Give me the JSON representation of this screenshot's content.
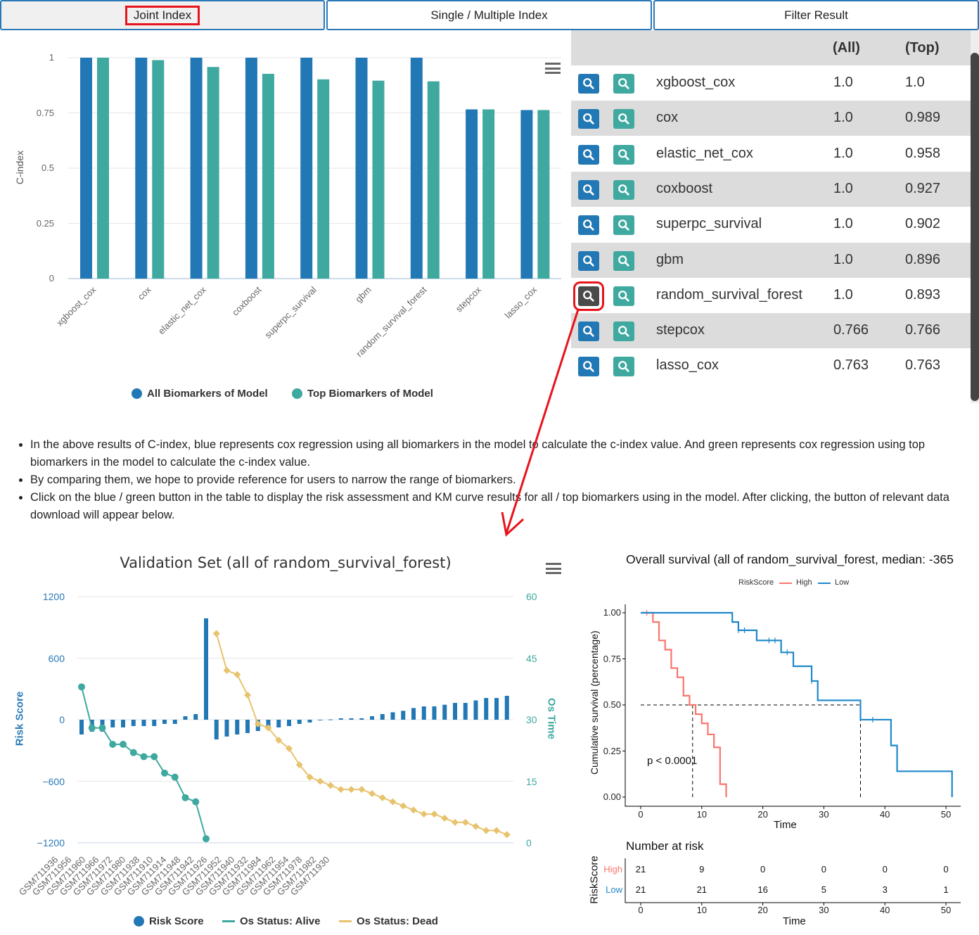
{
  "tabs": [
    {
      "label": "Joint Index",
      "active": true
    },
    {
      "label": "Single / Multiple Index"
    },
    {
      "label": "Filter Result"
    }
  ],
  "table": {
    "headers": {
      "all": "(All)",
      "top": "(Top)"
    },
    "rows": [
      {
        "model": "xgboost_cox",
        "all": "1.0",
        "top": "1.0"
      },
      {
        "model": "cox",
        "all": "1.0",
        "top": "0.989"
      },
      {
        "model": "elastic_net_cox",
        "all": "1.0",
        "top": "0.958"
      },
      {
        "model": "coxboost",
        "all": "1.0",
        "top": "0.927"
      },
      {
        "model": "superpc_survival",
        "all": "1.0",
        "top": "0.902"
      },
      {
        "model": "gbm",
        "all": "1.0",
        "top": "0.896"
      },
      {
        "model": "random_survival_forest",
        "all": "1.0",
        "top": "0.893",
        "selected": true
      },
      {
        "model": "stepcox",
        "all": "0.766",
        "top": "0.766"
      },
      {
        "model": "lasso_cox",
        "all": "0.763",
        "top": "0.763"
      }
    ],
    "all_button_color": "#2278b5",
    "top_button_color": "#3fa9a0",
    "selected_button_color": "#4a4a4a"
  },
  "notes": [
    "In the above results of C-index, blue represents cox regression using all biomarkers in the model to calculate the c-index value. And green represents cox regression using top biomarkers in the model to calculate the c-index value.",
    "By comparing them, we hope to provide reference for users to narrow the range of biomarkers.",
    "Click on the blue / green button in the table to display the risk assessment and KM curve results for all / top biomarkers using in the model. After clicking, the button of relevant data download will appear below."
  ],
  "chart_data": [
    {
      "type": "bar",
      "ylabel": "C-index",
      "ylim": [
        0,
        1
      ],
      "yticks": [
        "0",
        "0.25",
        "0.5",
        "0.75",
        "1"
      ],
      "categories": [
        "xgboost_cox",
        "cox",
        "elastic_net_cox",
        "coxboost",
        "superpc_survival",
        "gbm",
        "random_survival_forest",
        "stepcox",
        "lasso_cox"
      ],
      "series": [
        {
          "name": "All Biomarkers of Model",
          "color": "#2278b5",
          "values": [
            1.0,
            1.0,
            1.0,
            1.0,
            1.0,
            1.0,
            1.0,
            0.766,
            0.763
          ]
        },
        {
          "name": "Top Biomarkers of Model",
          "color": "#3fa9a0",
          "values": [
            1.0,
            0.989,
            0.958,
            0.927,
            0.902,
            0.896,
            0.893,
            0.766,
            0.763
          ]
        }
      ],
      "legend": "bottom",
      "grid": true
    },
    {
      "type": "bar+line",
      "title": "Validation Set (all of random_survival_forest)",
      "ylabel_left": "Risk Score",
      "ylabel_right": "Os Time",
      "ylim_left": [
        -1200,
        1200
      ],
      "yticks_left": [
        "1200",
        "600",
        "0",
        "−600",
        "−1200"
      ],
      "ylim_right": [
        0,
        60
      ],
      "yticks_right": [
        "60",
        "45",
        "30",
        "15",
        "0"
      ],
      "xtick_labels": [
        "GSM711936",
        "GSM711956",
        "GSM711960",
        "GSM711966",
        "GSM711972",
        "GSM711980",
        "GSM711938",
        "GSM711910",
        "GSM711914",
        "GSM711948",
        "GSM711942",
        "GSM711926",
        "GSM711952",
        "GSM711940",
        "GSM711932",
        "GSM711984",
        "GSM711962",
        "GSM711954",
        "GSM711978",
        "GSM711982",
        "GSM711930"
      ],
      "risk_score": {
        "name": "Risk Score",
        "color": "#2278b5",
        "values": [
          -144,
          -117,
          -117,
          -75,
          -75,
          -62,
          -62,
          -62,
          -41,
          -41,
          34,
          55,
          988,
          -192,
          -164,
          -144,
          -130,
          -110,
          -75,
          -75,
          -62,
          -41,
          -27,
          -5,
          3,
          14,
          14,
          14,
          34,
          55,
          73,
          87,
          114,
          130,
          130,
          146,
          164,
          164,
          188,
          212,
          212,
          233
        ]
      },
      "alive": {
        "name": "Os Status: Alive",
        "color": "#3fa9a0",
        "values": [
          38,
          28,
          28,
          24,
          24,
          22,
          21,
          21,
          17,
          16,
          11,
          10,
          1
        ]
      },
      "dead": {
        "name": "Os Status: Dead",
        "color": "#e8c36e",
        "values": [
          51,
          42,
          41,
          36,
          29,
          28,
          25,
          23,
          19,
          16,
          15,
          14,
          13,
          13,
          13,
          12,
          11,
          10,
          9,
          8,
          7,
          7,
          6,
          5,
          5,
          4,
          3,
          3,
          2
        ]
      },
      "legend": "bottom",
      "grid": true
    },
    {
      "type": "km",
      "title": "Overall survival (all of random_survival_forest, median: -365",
      "xlabel": "Time",
      "ylabel": "Cumulative survival (percentage)",
      "legend_title": "RiskScore",
      "xlim": [
        0,
        50
      ],
      "xticks": [
        "0",
        "10",
        "20",
        "30",
        "40",
        "50"
      ],
      "ylim": [
        0,
        1
      ],
      "yticks": [
        "0.00",
        "0.25",
        "0.50",
        "0.75",
        "1.00"
      ],
      "pvalue": "p < 0.0001",
      "series": [
        {
          "name": "High",
          "color": "#f8766d",
          "steps": [
            [
              0,
              1
            ],
            [
              2,
              0.95
            ],
            [
              3,
              0.85
            ],
            [
              4,
              0.8
            ],
            [
              5,
              0.7
            ],
            [
              6,
              0.65
            ],
            [
              7,
              0.55
            ],
            [
              8,
              0.5
            ],
            [
              9,
              0.45
            ],
            [
              10,
              0.4
            ],
            [
              11,
              0.34
            ],
            [
              12,
              0.27
            ],
            [
              13,
              0.07
            ],
            [
              14,
              0
            ]
          ],
          "end": 14,
          "censor": [
            1
          ]
        },
        {
          "name": "Low",
          "color": "#1f88c9",
          "steps": [
            [
              0,
              1
            ],
            [
              15,
              0.95
            ],
            [
              16,
              0.905
            ],
            [
              19,
              0.85
            ],
            [
              23,
              0.785
            ],
            [
              25,
              0.71
            ],
            [
              28,
              0.63
            ],
            [
              29,
              0.525
            ],
            [
              36,
              0.42
            ],
            [
              41,
              0.28
            ],
            [
              42,
              0.14
            ],
            [
              51,
              0
            ]
          ],
          "end": 51,
          "censor": [
            16,
            17,
            21,
            22,
            24,
            28,
            38
          ]
        }
      ],
      "medians": [
        8.5,
        36
      ],
      "risk_table": {
        "title": "Number at risk",
        "ylabel": "RiskScore",
        "xlabel": "Time",
        "rows": [
          {
            "label": "High",
            "values": [
              "21",
              "9",
              "0",
              "0",
              "0",
              "0"
            ]
          },
          {
            "label": "Low",
            "values": [
              "21",
              "21",
              "16",
              "5",
              "3",
              "1"
            ]
          }
        ]
      }
    }
  ]
}
